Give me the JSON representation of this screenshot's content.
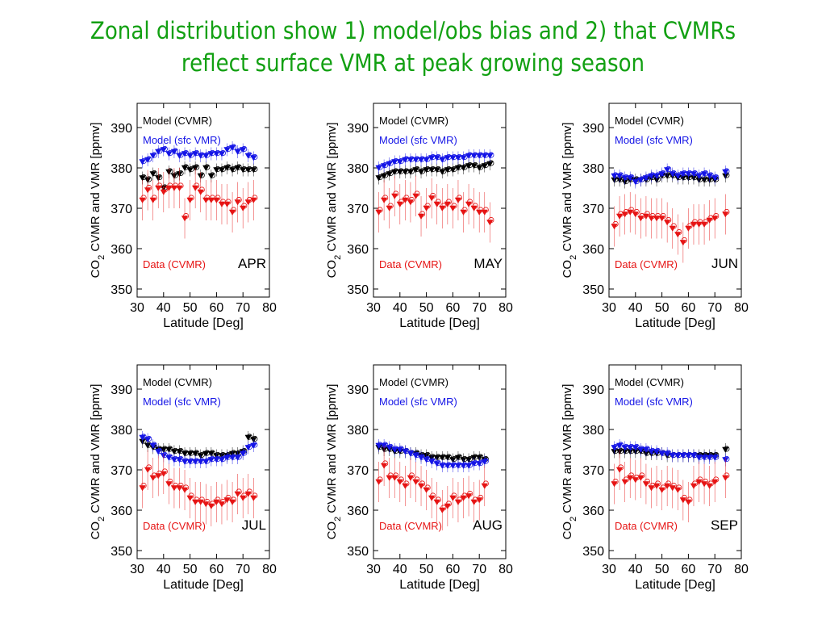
{
  "slide": {
    "title_line1": "Zonal distribution show 1) model/obs bias and 2) that CVMRs",
    "title_line2": "reflect surface VMR at peak growing season"
  },
  "colors": {
    "title": "#12a012",
    "model_cvmr": "#000000",
    "model_sfc_vmr": "#1414e6",
    "data_cvmr": "#e61414"
  },
  "chart_data": [
    {
      "type": "scatter",
      "panel": "APR",
      "month": "APR",
      "xlabel": "Latitude [Deg]",
      "ylabel": "CO2 CVMR and VMR [ppmv]",
      "xlim": [
        30,
        80
      ],
      "ylim": [
        348,
        396
      ],
      "xticks": [
        "30",
        "40",
        "50",
        "60",
        "70",
        "80"
      ],
      "yticks": [
        "350",
        "360",
        "370",
        "380",
        "390"
      ],
      "legend": [
        "Model (CVMR)",
        "Model (sfc VMR)",
        "Data (CVMR)"
      ],
      "series": [
        {
          "name": "Model (CVMR)",
          "x": [
            32,
            34,
            36,
            38,
            40,
            42,
            44,
            46,
            48,
            50,
            52,
            54,
            56,
            58,
            60,
            62,
            64,
            66,
            68,
            70,
            72,
            74
          ],
          "y": [
            377.5,
            377,
            378.5,
            377.5,
            375,
            379,
            378,
            378.5,
            380,
            379.5,
            380,
            378,
            380,
            378,
            379.5,
            379.5,
            380,
            379.5,
            380,
            379.5,
            379.5,
            379.5
          ]
        },
        {
          "name": "Model (sfc VMR)",
          "x": [
            32,
            34,
            36,
            38,
            40,
            42,
            44,
            46,
            48,
            50,
            52,
            54,
            56,
            58,
            60,
            62,
            64,
            66,
            68,
            70,
            72,
            74
          ],
          "y": [
            381.5,
            382,
            383,
            384,
            384.5,
            383.5,
            384,
            383,
            383.5,
            383,
            383.5,
            383,
            383,
            383.5,
            383.5,
            383.5,
            384.5,
            385,
            384,
            384.5,
            383,
            382.5
          ]
        },
        {
          "name": "Data (CVMR)",
          "x": [
            32,
            34,
            36,
            38,
            40,
            42,
            44,
            46,
            48,
            50,
            52,
            54,
            56,
            58,
            60,
            62,
            64,
            66,
            68,
            70,
            72,
            74
          ],
          "y": [
            372,
            374.5,
            372,
            375,
            374,
            375,
            375,
            375,
            367.5,
            372,
            375,
            374,
            372,
            372,
            372,
            371,
            371,
            369,
            371.5,
            370,
            371.5,
            372
          ]
        }
      ]
    },
    {
      "type": "scatter",
      "panel": "MAY",
      "month": "MAY",
      "xlabel": "Latitude [Deg]",
      "ylabel": "CO2 CVMR and VMR [ppmv]",
      "xlim": [
        30,
        80
      ],
      "ylim": [
        348,
        396
      ],
      "xticks": [
        "30",
        "40",
        "50",
        "60",
        "70",
        "80"
      ],
      "yticks": [
        "350",
        "360",
        "370",
        "380",
        "390"
      ],
      "legend": [
        "Model (CVMR)",
        "Model (sfc VMR)",
        "Data (CVMR)"
      ],
      "series": [
        {
          "name": "Model (CVMR)",
          "x": [
            32,
            34,
            36,
            38,
            40,
            42,
            44,
            46,
            48,
            50,
            52,
            54,
            56,
            58,
            60,
            62,
            64,
            66,
            68,
            70,
            72,
            74
          ],
          "y": [
            377.5,
            378,
            378.5,
            379,
            379,
            379,
            379,
            379.5,
            379,
            379.5,
            379.5,
            379.5,
            379,
            379.5,
            379.5,
            380,
            380,
            380.5,
            380.5,
            380,
            380.5,
            381
          ]
        },
        {
          "name": "Model (sfc VMR)",
          "x": [
            32,
            34,
            36,
            38,
            40,
            42,
            44,
            46,
            48,
            50,
            52,
            54,
            56,
            58,
            60,
            62,
            64,
            66,
            68,
            70,
            72,
            74
          ],
          "y": [
            380,
            380.5,
            381,
            381.5,
            381.5,
            382,
            382,
            382,
            382,
            382,
            382.5,
            382.5,
            382,
            382.5,
            382.5,
            382.5,
            382.5,
            383,
            383,
            383,
            383,
            383
          ]
        },
        {
          "name": "Data (CVMR)",
          "x": [
            32,
            34,
            36,
            38,
            40,
            42,
            44,
            46,
            48,
            50,
            52,
            54,
            56,
            58,
            60,
            62,
            64,
            66,
            68,
            70,
            72,
            74
          ],
          "y": [
            369,
            372,
            370,
            373,
            371,
            372,
            371.5,
            373,
            368,
            370,
            372.5,
            371,
            370,
            371,
            370,
            372,
            369,
            371,
            370,
            369,
            369,
            366.5
          ]
        }
      ]
    },
    {
      "type": "scatter",
      "panel": "JUN",
      "month": "JUN",
      "xlabel": "Latitude [Deg]",
      "ylabel": "CO2 CVMR and VMR [ppmv]",
      "xlim": [
        30,
        80
      ],
      "ylim": [
        348,
        396
      ],
      "xticks": [
        "30",
        "40",
        "50",
        "60",
        "70",
        "80"
      ],
      "yticks": [
        "350",
        "360",
        "370",
        "380",
        "390"
      ],
      "legend": [
        "Model (CVMR)",
        "Model (sfc VMR)",
        "Data (CVMR)"
      ],
      "series": [
        {
          "name": "Model (CVMR)",
          "x": [
            32,
            34,
            36,
            38,
            40,
            42,
            44,
            46,
            48,
            50,
            52,
            54,
            56,
            58,
            60,
            62,
            64,
            66,
            68,
            70,
            74
          ],
          "y": [
            377,
            377,
            376.5,
            377,
            377,
            377,
            377,
            377.5,
            377,
            378,
            378,
            378,
            377.5,
            377.5,
            377.5,
            377.5,
            377,
            377,
            377,
            377,
            378
          ]
        },
        {
          "name": "Model (sfc VMR)",
          "x": [
            32,
            34,
            36,
            38,
            40,
            42,
            44,
            46,
            48,
            50,
            52,
            54,
            56,
            58,
            60,
            62,
            64,
            66,
            68,
            70,
            74
          ],
          "y": [
            378,
            378,
            377.5,
            377.5,
            376.5,
            377,
            377.5,
            378,
            378,
            378.5,
            379.5,
            378.5,
            378,
            378.5,
            378.5,
            378.5,
            378,
            378.5,
            378,
            377.5,
            379
          ]
        },
        {
          "name": "Data (CVMR)",
          "x": [
            32,
            34,
            36,
            38,
            40,
            42,
            44,
            46,
            48,
            50,
            52,
            54,
            56,
            58,
            60,
            62,
            64,
            66,
            68,
            70,
            74
          ],
          "y": [
            365.5,
            368,
            368.5,
            369,
            368.5,
            367.5,
            368,
            367.5,
            367.5,
            367.5,
            366.5,
            365,
            363.5,
            361.5,
            365,
            366,
            366,
            366,
            367,
            367.5,
            368.5
          ]
        }
      ]
    },
    {
      "type": "scatter",
      "panel": "JUL",
      "month": "JUL",
      "xlabel": "Latitude [Deg]",
      "ylabel": "CO2 CVMR and VMR [ppmv]",
      "xlim": [
        30,
        80
      ],
      "ylim": [
        348,
        396
      ],
      "xticks": [
        "30",
        "40",
        "50",
        "60",
        "70",
        "80"
      ],
      "yticks": [
        "350",
        "360",
        "370",
        "380",
        "390"
      ],
      "legend": [
        "Model (CVMR)",
        "Model (sfc VMR)",
        "Data (CVMR)"
      ],
      "series": [
        {
          "name": "Model (CVMR)",
          "x": [
            32,
            34,
            36,
            38,
            40,
            42,
            44,
            46,
            48,
            50,
            52,
            54,
            56,
            58,
            60,
            62,
            64,
            66,
            68,
            70,
            72,
            74
          ],
          "y": [
            377,
            376,
            375.5,
            375,
            375,
            375,
            374.5,
            374.5,
            374,
            374,
            374,
            373.5,
            374,
            374,
            373.5,
            373.5,
            373.5,
            374,
            374,
            374.5,
            378,
            377.5
          ]
        },
        {
          "name": "Model (sfc VMR)",
          "x": [
            32,
            34,
            36,
            38,
            40,
            42,
            44,
            46,
            48,
            50,
            52,
            54,
            56,
            58,
            60,
            62,
            64,
            66,
            68,
            70,
            72,
            74
          ],
          "y": [
            378,
            377.5,
            376,
            374.5,
            373.5,
            373,
            372.5,
            372.5,
            372,
            372,
            372,
            372,
            372,
            372.5,
            372.5,
            372.5,
            373,
            373,
            373,
            374,
            375.5,
            376
          ]
        },
        {
          "name": "Data (CVMR)",
          "x": [
            32,
            34,
            36,
            38,
            40,
            42,
            44,
            46,
            48,
            50,
            52,
            54,
            56,
            58,
            60,
            62,
            64,
            66,
            68,
            70,
            72,
            74
          ],
          "y": [
            365.5,
            370,
            368,
            368.5,
            369,
            366.5,
            365.5,
            365.5,
            365,
            363,
            362,
            362,
            361.5,
            361,
            362,
            361.5,
            362.5,
            362,
            364,
            363,
            364,
            363
          ]
        }
      ]
    },
    {
      "type": "scatter",
      "panel": "AUG",
      "month": "AUG",
      "xlabel": "Latitude [Deg]",
      "ylabel": "CO2 CVMR and VMR [ppmv]",
      "xlim": [
        30,
        80
      ],
      "ylim": [
        348,
        396
      ],
      "xticks": [
        "30",
        "40",
        "50",
        "60",
        "70",
        "80"
      ],
      "yticks": [
        "350",
        "360",
        "370",
        "380",
        "390"
      ],
      "legend": [
        "Model (CVMR)",
        "Model (sfc VMR)",
        "Data (CVMR)"
      ],
      "series": [
        {
          "name": "Model (CVMR)",
          "x": [
            32,
            34,
            36,
            38,
            40,
            42,
            44,
            46,
            48,
            50,
            52,
            54,
            56,
            58,
            60,
            62,
            64,
            66,
            68,
            70,
            72
          ],
          "y": [
            375.5,
            375,
            375,
            374.5,
            374.5,
            374.5,
            374,
            374,
            373.5,
            373.5,
            373,
            373,
            373,
            373,
            372.5,
            373,
            372.5,
            372.5,
            373,
            373,
            372.5
          ]
        },
        {
          "name": "Model (sfc VMR)",
          "x": [
            32,
            34,
            36,
            38,
            40,
            42,
            44,
            46,
            48,
            50,
            52,
            54,
            56,
            58,
            60,
            62,
            64,
            66,
            68,
            70,
            72
          ],
          "y": [
            376,
            376,
            375.5,
            375,
            375,
            374.5,
            374,
            373.5,
            373,
            372.5,
            372,
            371.5,
            371,
            371,
            371,
            371,
            371,
            371,
            371.5,
            371.5,
            372
          ]
        },
        {
          "name": "Data (CVMR)",
          "x": [
            32,
            34,
            36,
            38,
            40,
            42,
            44,
            46,
            48,
            50,
            52,
            54,
            56,
            58,
            60,
            62,
            64,
            66,
            68,
            70,
            72
          ],
          "y": [
            367,
            371,
            368,
            368,
            367,
            366,
            368,
            367,
            366,
            365,
            363,
            362,
            360,
            361,
            363,
            362,
            363,
            363.5,
            362,
            362.5,
            366
          ]
        }
      ]
    },
    {
      "type": "scatter",
      "panel": "SEP",
      "month": "SEP",
      "xlabel": "Latitude [Deg]",
      "ylabel": "CO2 CVMR and VMR [ppmv]",
      "xlim": [
        30,
        80
      ],
      "ylim": [
        348,
        396
      ],
      "xticks": [
        "30",
        "40",
        "50",
        "60",
        "70",
        "80"
      ],
      "yticks": [
        "350",
        "360",
        "370",
        "380",
        "390"
      ],
      "legend": [
        "Model (CVMR)",
        "Model (sfc VMR)",
        "Data (CVMR)"
      ],
      "series": [
        {
          "name": "Model (CVMR)",
          "x": [
            32,
            34,
            36,
            38,
            40,
            42,
            44,
            46,
            48,
            50,
            52,
            54,
            56,
            58,
            60,
            62,
            64,
            66,
            68,
            70,
            74
          ],
          "y": [
            374.5,
            374.5,
            374.5,
            374.5,
            374.5,
            374.5,
            374,
            374,
            374,
            374,
            373.5,
            373.5,
            373.5,
            373.5,
            373.5,
            373.5,
            373.5,
            373.5,
            373.5,
            373.5,
            375
          ]
        },
        {
          "name": "Model (sfc VMR)",
          "x": [
            32,
            34,
            36,
            38,
            40,
            42,
            44,
            46,
            48,
            50,
            52,
            54,
            56,
            58,
            60,
            62,
            64,
            66,
            68,
            70,
            74
          ],
          "y": [
            375.5,
            376,
            375.5,
            375.5,
            375.5,
            375,
            375,
            374.5,
            374.5,
            374,
            374,
            373.5,
            373.5,
            373.5,
            373.5,
            373.5,
            373,
            373,
            373,
            373,
            372.5
          ]
        },
        {
          "name": "Data (CVMR)",
          "x": [
            32,
            34,
            36,
            38,
            40,
            42,
            44,
            46,
            48,
            50,
            52,
            54,
            56,
            58,
            60,
            62,
            64,
            66,
            68,
            70,
            74
          ],
          "y": [
            366.5,
            370,
            367,
            368,
            367.5,
            368,
            366.5,
            365.5,
            366,
            365,
            366,
            365.5,
            365,
            362.5,
            362,
            366,
            367,
            366.5,
            366,
            367,
            368
          ]
        }
      ]
    }
  ]
}
